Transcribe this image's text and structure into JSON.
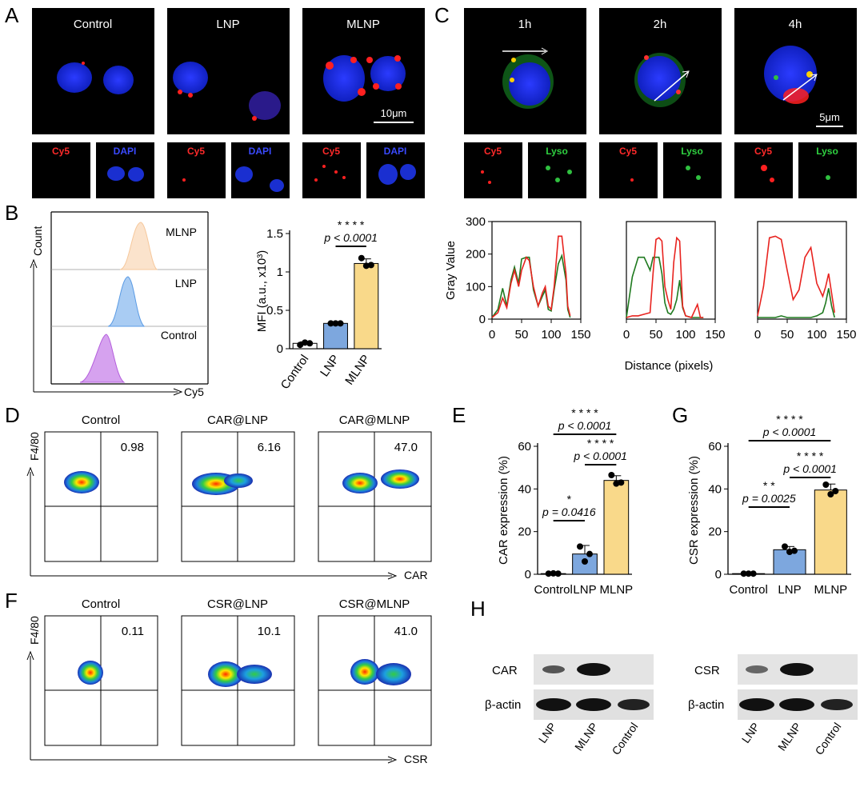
{
  "figure": {
    "panels": {
      "A": "A",
      "B": "B",
      "C": "C",
      "D": "D",
      "E": "E",
      "F": "F",
      "G": "G",
      "H": "H"
    },
    "a": {
      "groups": [
        "Control",
        "LNP",
        "MLNP"
      ],
      "channel_cy5": "Cy5",
      "channel_dapi": "DAPI",
      "scale_bar": "10μm"
    },
    "b_hist": {
      "ylabel": "Count",
      "xlabel": "Cy5",
      "tracks": [
        "MLNP",
        "LNP",
        "Control"
      ],
      "colors": [
        "#f6c89c",
        "#5b9be4",
        "#b45fdc"
      ]
    },
    "c": {
      "times": [
        "1h",
        "2h",
        "4h"
      ],
      "channel_cy5": "Cy5",
      "channel_lyso": "Lyso",
      "scale_bar": "5μm"
    },
    "c_profile": {
      "ylabel": "Gray Value",
      "xlabel": "Distance (pixels)",
      "yticks": [
        "0",
        "100",
        "200",
        "300"
      ],
      "xticks": [
        "0",
        "50",
        "100",
        "150"
      ]
    },
    "d": {
      "groups": [
        "Control",
        "CAR@LNP",
        "CAR@MLNP"
      ],
      "values": [
        "0.98",
        "6.16",
        "47.0"
      ],
      "ylabel": "F4/80",
      "xlabel": "CAR"
    },
    "f": {
      "groups": [
        "Control",
        "CSR@LNP",
        "CSR@MLNP"
      ],
      "values": [
        "0.11",
        "10.1",
        "41.0"
      ],
      "ylabel": "F4/80",
      "xlabel": "CSR"
    },
    "h": {
      "car": {
        "protein": "CAR",
        "control": "β-actin",
        "lanes": [
          "LNP",
          "MLNP",
          "Control"
        ]
      },
      "csr": {
        "protein": "CSR",
        "control": "β-actin",
        "lanes": [
          "LNP",
          "MLNP",
          "Control"
        ]
      }
    }
  },
  "chart_data": [
    {
      "id": "B-bar",
      "type": "bar",
      "categories": [
        "Control",
        "LNP",
        "MLNP"
      ],
      "values": [
        0.07,
        0.33,
        1.11
      ],
      "points": [
        [
          0.05,
          0.08,
          0.07
        ],
        [
          0.33,
          0.33,
          0.33
        ],
        [
          1.18,
          1.08,
          1.09
        ]
      ],
      "errors": [
        0.02,
        0.01,
        0.06
      ],
      "colors": [
        "#ffffff",
        "#7da7de",
        "#f9d98a"
      ],
      "ylabel": "MFI (a.u., x10³)",
      "yticks": [
        "0",
        "0.5",
        "1",
        "1.5"
      ],
      "ylim": [
        0,
        1.5
      ],
      "sig": {
        "stars": "* * * *",
        "p": "p < 0.0001"
      }
    },
    {
      "id": "C-profile",
      "type": "line",
      "xlim": [
        0,
        150
      ],
      "ylim": [
        0,
        300
      ],
      "series": [
        {
          "name": "1h Cy5",
          "color": "#e8231f",
          "x": [
            0,
            10,
            18,
            25,
            32,
            38,
            45,
            50,
            58,
            63,
            70,
            78,
            85,
            90,
            95,
            100,
            105,
            112,
            118,
            125,
            128,
            132
          ],
          "y": [
            5,
            20,
            65,
            35,
            110,
            150,
            100,
            150,
            190,
            180,
            100,
            40,
            80,
            100,
            40,
            30,
            100,
            255,
            255,
            140,
            40,
            10
          ]
        },
        {
          "name": "1h Lyso",
          "color": "#1f7a1f",
          "x": [
            0,
            10,
            18,
            25,
            32,
            38,
            45,
            50,
            58,
            63,
            70,
            78,
            85,
            90,
            95,
            100,
            105,
            112,
            118,
            125,
            128,
            132
          ],
          "y": [
            5,
            30,
            95,
            40,
            120,
            160,
            110,
            185,
            190,
            190,
            90,
            40,
            70,
            90,
            30,
            25,
            90,
            170,
            195,
            120,
            30,
            5
          ]
        },
        {
          "name": "2h Cy5",
          "color": "#e8231f",
          "x": [
            0,
            10,
            20,
            30,
            40,
            45,
            50,
            55,
            60,
            65,
            70,
            75,
            80,
            85,
            90,
            95,
            100,
            110,
            120,
            125,
            130
          ],
          "y": [
            5,
            10,
            10,
            15,
            20,
            140,
            245,
            250,
            240,
            100,
            60,
            30,
            175,
            250,
            240,
            40,
            10,
            5,
            45,
            5,
            5
          ]
        },
        {
          "name": "2h Lyso",
          "color": "#1f7a1f",
          "x": [
            0,
            10,
            20,
            30,
            40,
            45,
            50,
            55,
            60,
            65,
            70,
            75,
            80,
            85,
            90,
            95,
            100,
            110,
            120,
            125,
            130
          ],
          "y": [
            5,
            130,
            190,
            190,
            150,
            190,
            190,
            190,
            140,
            50,
            20,
            15,
            30,
            60,
            120,
            35,
            10,
            5,
            5,
            5,
            5
          ]
        },
        {
          "name": "4h Cy5",
          "color": "#e8231f",
          "x": [
            0,
            10,
            20,
            30,
            40,
            50,
            60,
            70,
            80,
            90,
            100,
            110,
            115,
            120,
            125,
            130
          ],
          "y": [
            10,
            100,
            250,
            255,
            245,
            150,
            60,
            90,
            190,
            220,
            110,
            70,
            100,
            140,
            80,
            20
          ]
        },
        {
          "name": "4h Lyso",
          "color": "#1f7a1f",
          "x": [
            0,
            10,
            20,
            30,
            40,
            50,
            60,
            70,
            80,
            90,
            100,
            110,
            115,
            120,
            125,
            130
          ],
          "y": [
            5,
            5,
            5,
            5,
            10,
            5,
            5,
            5,
            5,
            5,
            10,
            20,
            50,
            95,
            40,
            5
          ]
        }
      ]
    },
    {
      "id": "E-bar",
      "type": "bar",
      "categories": [
        "Control",
        "LNP",
        "MLNP"
      ],
      "values": [
        0.3,
        9.5,
        44.0
      ],
      "points": [
        [
          0.3,
          0.4,
          0.3
        ],
        [
          13.0,
          6.0,
          9.5
        ],
        [
          46.5,
          42.5,
          43.0
        ]
      ],
      "errors": [
        0.1,
        4.0,
        2.2
      ],
      "colors": [
        "#ffffff",
        "#7da7de",
        "#f9d98a"
      ],
      "ylabel": "CAR expression (%)",
      "yticks": [
        "0",
        "20",
        "40",
        "60"
      ],
      "ylim": [
        0,
        60
      ],
      "sig": [
        {
          "stars": "* * * *",
          "p": "p < 0.0001"
        },
        {
          "stars": "* * * *",
          "p": "p < 0.0001"
        },
        {
          "stars": "*",
          "p": "p = 0.0416"
        }
      ]
    },
    {
      "id": "G-bar",
      "type": "bar",
      "categories": [
        "Control",
        "LNP",
        "MLNP"
      ],
      "values": [
        0.3,
        11.5,
        39.5
      ],
      "points": [
        [
          0.3,
          0.3,
          0.3
        ],
        [
          13.0,
          10.5,
          11.0
        ],
        [
          42.0,
          37.5,
          39.0
        ]
      ],
      "errors": [
        0.1,
        1.5,
        2.8
      ],
      "colors": [
        "#ffffff",
        "#7da7de",
        "#f9d98a"
      ],
      "ylabel": "CSR expression (%)",
      "yticks": [
        "0",
        "20",
        "40",
        "60"
      ],
      "ylim": [
        0,
        60
      ],
      "sig": [
        {
          "stars": "* * * *",
          "p": "p < 0.0001"
        },
        {
          "stars": "* * * *",
          "p": "p < 0.0001"
        },
        {
          "stars": "* *",
          "p": "p = 0.0025"
        }
      ]
    }
  ]
}
